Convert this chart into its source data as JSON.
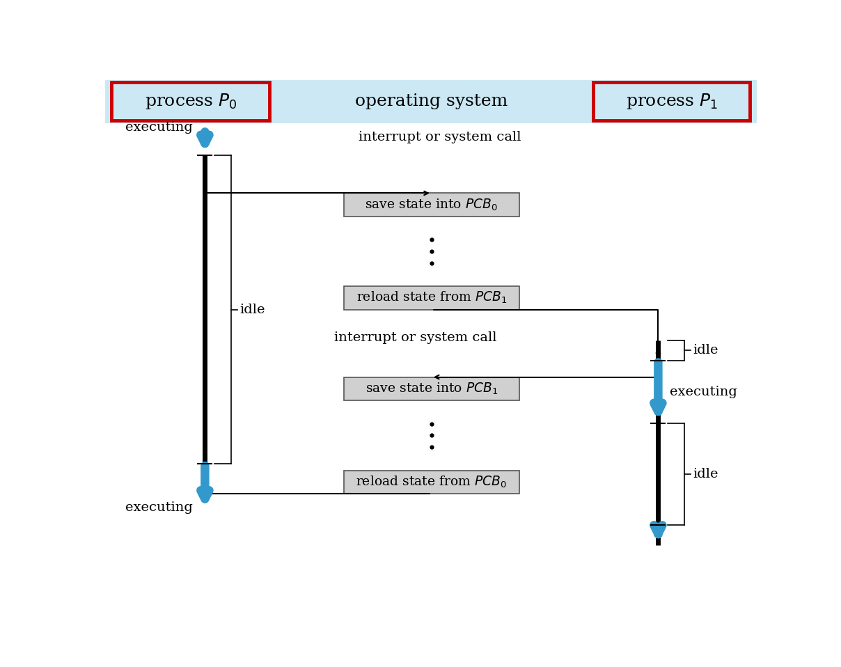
{
  "fig_width": 12.08,
  "fig_height": 9.58,
  "bg_color": "#ffffff",
  "header_bg": "#cce8f4",
  "header_border_color": "#cc0000",
  "box_bg": "#d0d0d0",
  "box_border": "#555555",
  "arrow_color": "#3399cc",
  "line_color": "#111111",
  "p0_label": "process $P_0$",
  "p1_label": "process $P_1$",
  "os_label": "operating system",
  "interrupt_label1": "interrupt or system call",
  "interrupt_label2": "interrupt or system call",
  "box1_label": "save state into $PCB_0$",
  "box2_label": "reload state from $PCB_1$",
  "box3_label": "save state into $PCB_1$",
  "box4_label": "reload state from $PCB_0$",
  "executing_label": "executing",
  "idle_label": "idle"
}
